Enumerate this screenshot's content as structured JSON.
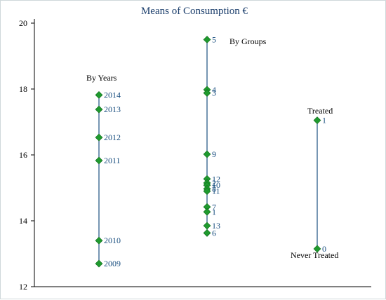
{
  "chart_data": {
    "type": "scatter",
    "title": "Means of Consumption €",
    "xlabel": "",
    "ylabel": "",
    "ylim": [
      12,
      20.2
    ],
    "yticks": [
      12,
      14,
      16,
      18,
      20
    ],
    "grid": false,
    "legend": "none",
    "marker_color": "#1f9a2e",
    "line_color": "#1a4f80",
    "columns": [
      {
        "name": "By Years",
        "points": [
          {
            "label": "2014",
            "value": 17.82
          },
          {
            "label": "2013",
            "value": 17.38
          },
          {
            "label": "2012",
            "value": 16.53
          },
          {
            "label": "2011",
            "value": 15.83
          },
          {
            "label": "2010",
            "value": 13.4
          },
          {
            "label": "2009",
            "value": 12.7
          }
        ]
      },
      {
        "name": "By Groups",
        "points": [
          {
            "label": "5",
            "value": 19.5
          },
          {
            "label": "4",
            "value": 17.98
          },
          {
            "label": "3",
            "value": 17.88
          },
          {
            "label": "9",
            "value": 16.02
          },
          {
            "label": "12",
            "value": 15.27
          },
          {
            "label": "2",
            "value": 15.15
          },
          {
            "label": "10",
            "value": 15.08
          },
          {
            "label": "8",
            "value": 14.97
          },
          {
            "label": "11",
            "value": 14.9
          },
          {
            "label": "7",
            "value": 14.42
          },
          {
            "label": "1",
            "value": 14.27
          },
          {
            "label": "13",
            "value": 13.85
          },
          {
            "label": "6",
            "value": 13.63
          }
        ]
      },
      {
        "name": "Treated / Never Treated",
        "top_label": "Treated",
        "bottom_label": "Never Treated",
        "points": [
          {
            "label": "1",
            "value": 17.05
          },
          {
            "label": "0",
            "value": 13.15
          }
        ]
      }
    ]
  }
}
